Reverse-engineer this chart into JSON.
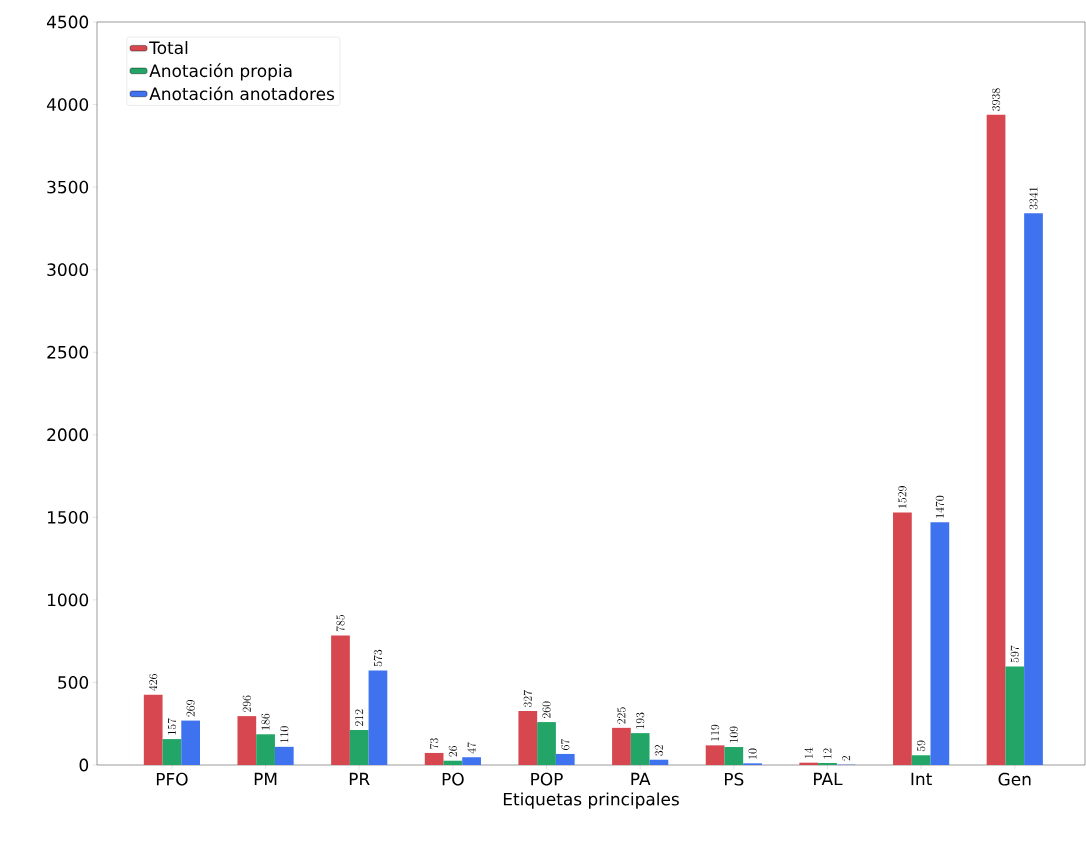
{
  "chart_data": {
    "type": "bar",
    "xlabel": "Etiquetas principales",
    "categories": [
      "PFO",
      "PM",
      "PR",
      "PO",
      "POP",
      "PA",
      "PS",
      "PAL",
      "Int",
      "Gen"
    ],
    "series": [
      {
        "name": "Total",
        "color": "#d6474f",
        "values": [
          426,
          296,
          785,
          73,
          327,
          225,
          119,
          14,
          1529,
          3938
        ]
      },
      {
        "name": "Anotación propia",
        "color": "#22a566",
        "values": [
          157,
          186,
          212,
          26,
          260,
          193,
          109,
          12,
          59,
          597
        ]
      },
      {
        "name": "Anotación anotadores",
        "color": "#3f72ee",
        "values": [
          269,
          110,
          573,
          47,
          67,
          32,
          10,
          2,
          1470,
          3341
        ]
      }
    ],
    "ylim": [
      0,
      4500
    ],
    "yticks": [
      0,
      500,
      1000,
      1500,
      2000,
      2500,
      3000,
      3500,
      4000,
      4500
    ],
    "data_labels": true,
    "legend": "top left",
    "grid": false
  }
}
